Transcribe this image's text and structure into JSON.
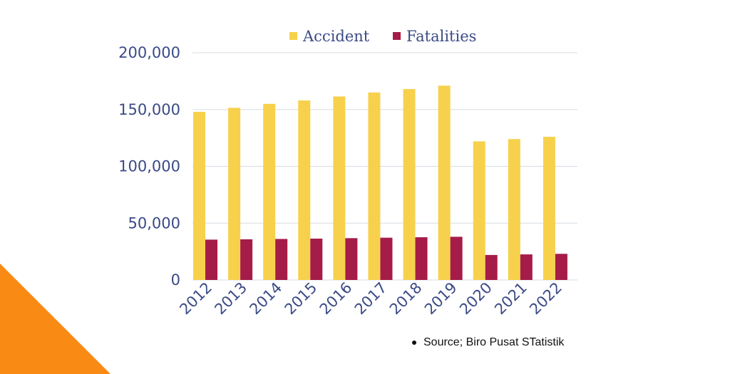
{
  "chart_data": {
    "type": "bar",
    "categories": [
      "2012",
      "2013",
      "2014",
      "2015",
      "2016",
      "2017",
      "2018",
      "2019",
      "2020",
      "2021",
      "2022"
    ],
    "series": [
      {
        "name": "Accident",
        "color": "#f7d14c",
        "values": [
          148000,
          151500,
          155000,
          158000,
          161500,
          165000,
          168000,
          171000,
          122000,
          124000,
          126000
        ]
      },
      {
        "name": "Fatalities",
        "color": "#a51c48",
        "values": [
          35500,
          35800,
          36100,
          36400,
          36800,
          37200,
          37600,
          38000,
          22000,
          22500,
          23000
        ]
      }
    ],
    "yticks": [
      "200,000",
      "150,000",
      "100,000",
      "50,000",
      "0"
    ],
    "ylim": [
      0,
      200000
    ],
    "grid": true,
    "legend": "top-center",
    "title": "",
    "xlabel": "",
    "ylabel": ""
  },
  "source_note": "Source; Biro Pusat STatistik",
  "decoration": {
    "corner_color": "#f98a14"
  }
}
